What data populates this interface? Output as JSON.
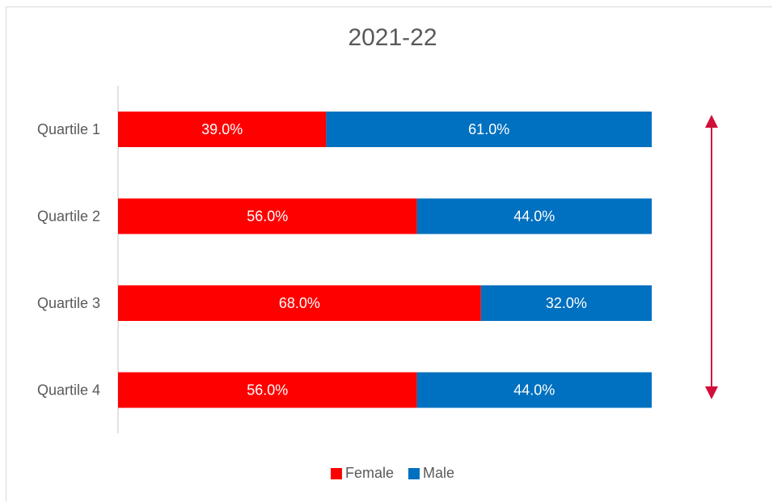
{
  "chart_data": {
    "type": "bar",
    "orientation": "horizontal",
    "stacked": true,
    "stack_mode": "percent",
    "title": "2021-22",
    "categories": [
      "Quartile 1",
      "Quartile 2",
      "Quartile 3",
      "Quartile 4"
    ],
    "series": [
      {
        "name": "Female",
        "color": "#ff0000",
        "values": [
          39.0,
          56.0,
          68.0,
          56.0
        ],
        "labels": [
          "39.0%",
          "56.0%",
          "68.0%",
          "56.0%"
        ]
      },
      {
        "name": "Male",
        "color": "#0070c0",
        "values": [
          61.0,
          44.0,
          32.0,
          44.0
        ],
        "labels": [
          "61.0%",
          "44.0%",
          "32.0%",
          "44.0%"
        ]
      }
    ],
    "xlim": [
      0,
      100
    ],
    "grid": false,
    "legend_position": "bottom",
    "annotation": {
      "type": "double-arrow",
      "direction": "vertical",
      "color": "#d0103a"
    }
  }
}
